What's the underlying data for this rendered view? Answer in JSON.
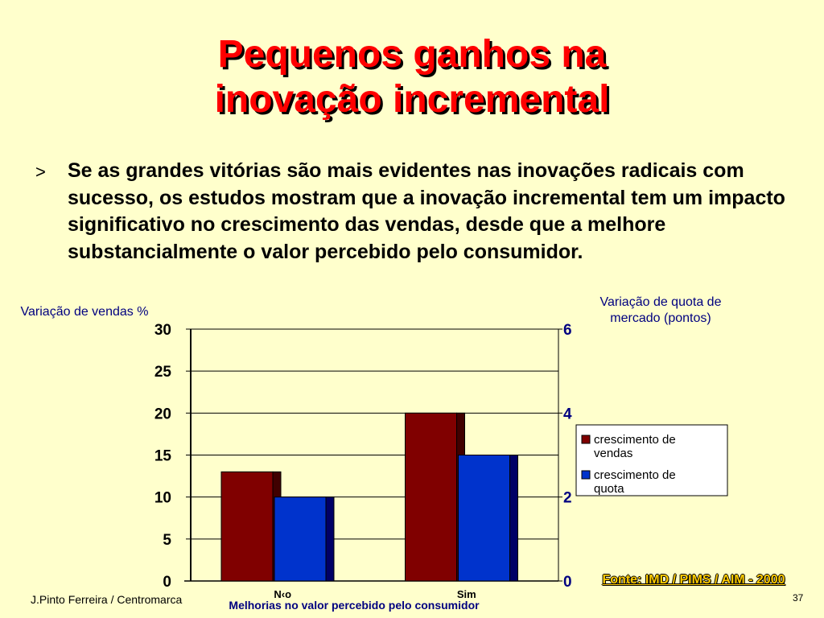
{
  "slide": {
    "title_line1": "Pequenos ganhos na",
    "title_line2": "inovação incremental",
    "bullet_marker": ">",
    "bullet_text": "Se as grandes vitórias são mais evidentes nas inovações radicais com sucesso, os estudos mostram que a inovação incremental tem um impacto significativo no crescimento das vendas, desde que a melhore substancialmente o valor percebido pelo consumidor.",
    "left_axis_title": "Variação de vendas %",
    "right_axis_title": "Variação de quota de mercado (pontos)",
    "x_axis_title": "Melhorias no valor percebido pelo consumidor",
    "source": "Fonte: IMD / PIMS / AIM - 2000",
    "footer_left": "J.Pinto Ferreira / Centromarca",
    "page_number": "37"
  },
  "chart_data": {
    "type": "bar",
    "categories": [
      "N‹o",
      "Sim"
    ],
    "series": [
      {
        "name": "crescimento de vendas",
        "values": [
          13,
          20
        ],
        "axis": "left",
        "color": "#800000"
      },
      {
        "name": "crescimento de quota",
        "values": [
          2,
          3
        ],
        "axis": "right",
        "color": "#0033CC"
      }
    ],
    "ylim_left": [
      0,
      30
    ],
    "yticks_left": [
      0,
      5,
      10,
      15,
      20,
      25,
      30
    ],
    "ylim_right": [
      0,
      6
    ],
    "yticks_right": [
      0,
      2,
      4,
      6
    ],
    "legend_position": "right",
    "grid": true
  }
}
